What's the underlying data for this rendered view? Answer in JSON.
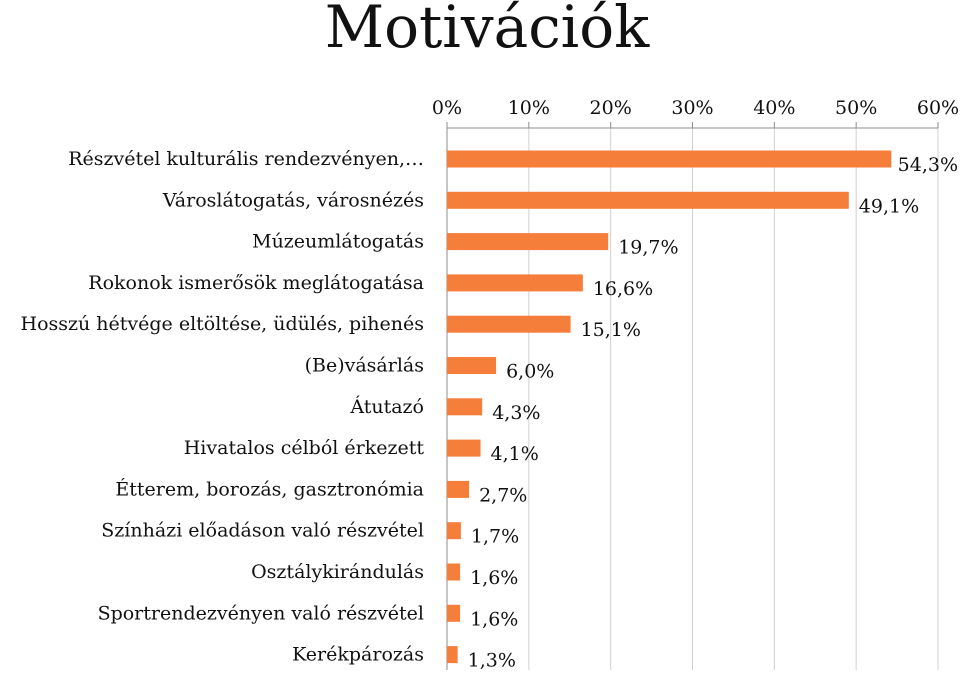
{
  "chart_data": {
    "type": "bar",
    "orientation": "horizontal",
    "title": "Motivációk",
    "xlim": [
      0,
      60
    ],
    "ticks": [
      "0%",
      "10%",
      "20%",
      "30%",
      "40%",
      "50%",
      "60%"
    ],
    "tick_values": [
      0,
      10,
      20,
      30,
      40,
      50,
      60
    ],
    "grid": true,
    "axis_position": "top",
    "bar_color": "#F47E3A",
    "categories": [
      "Részvétel kulturális rendezvényen,…",
      "Városlátogatás, városnézés",
      "Múzeumlátogatás",
      "Rokonok ismerősök meglátogatása",
      "Hosszú hétvége eltöltése, üdülés, pihenés",
      "(Be)vásárlás",
      "Átutazó",
      "Hivatalos célból érkezett",
      "Étterem, borozás, gasztronómia",
      "Színházi előadáson való részvétel",
      "Osztálykirándulás",
      "Sportrendezvényen való részvétel",
      "Kerékpározás"
    ],
    "values": [
      54.3,
      49.1,
      19.7,
      16.6,
      15.1,
      6.0,
      4.3,
      4.1,
      2.7,
      1.7,
      1.6,
      1.6,
      1.3
    ],
    "value_labels": [
      "54,3%",
      "49,1%",
      "19,7%",
      "16,6%",
      "15,1%",
      "6,0%",
      "4,3%",
      "4,1%",
      "2,7%",
      "1,7%",
      "1,6%",
      "1,6%",
      "1,3%"
    ]
  }
}
